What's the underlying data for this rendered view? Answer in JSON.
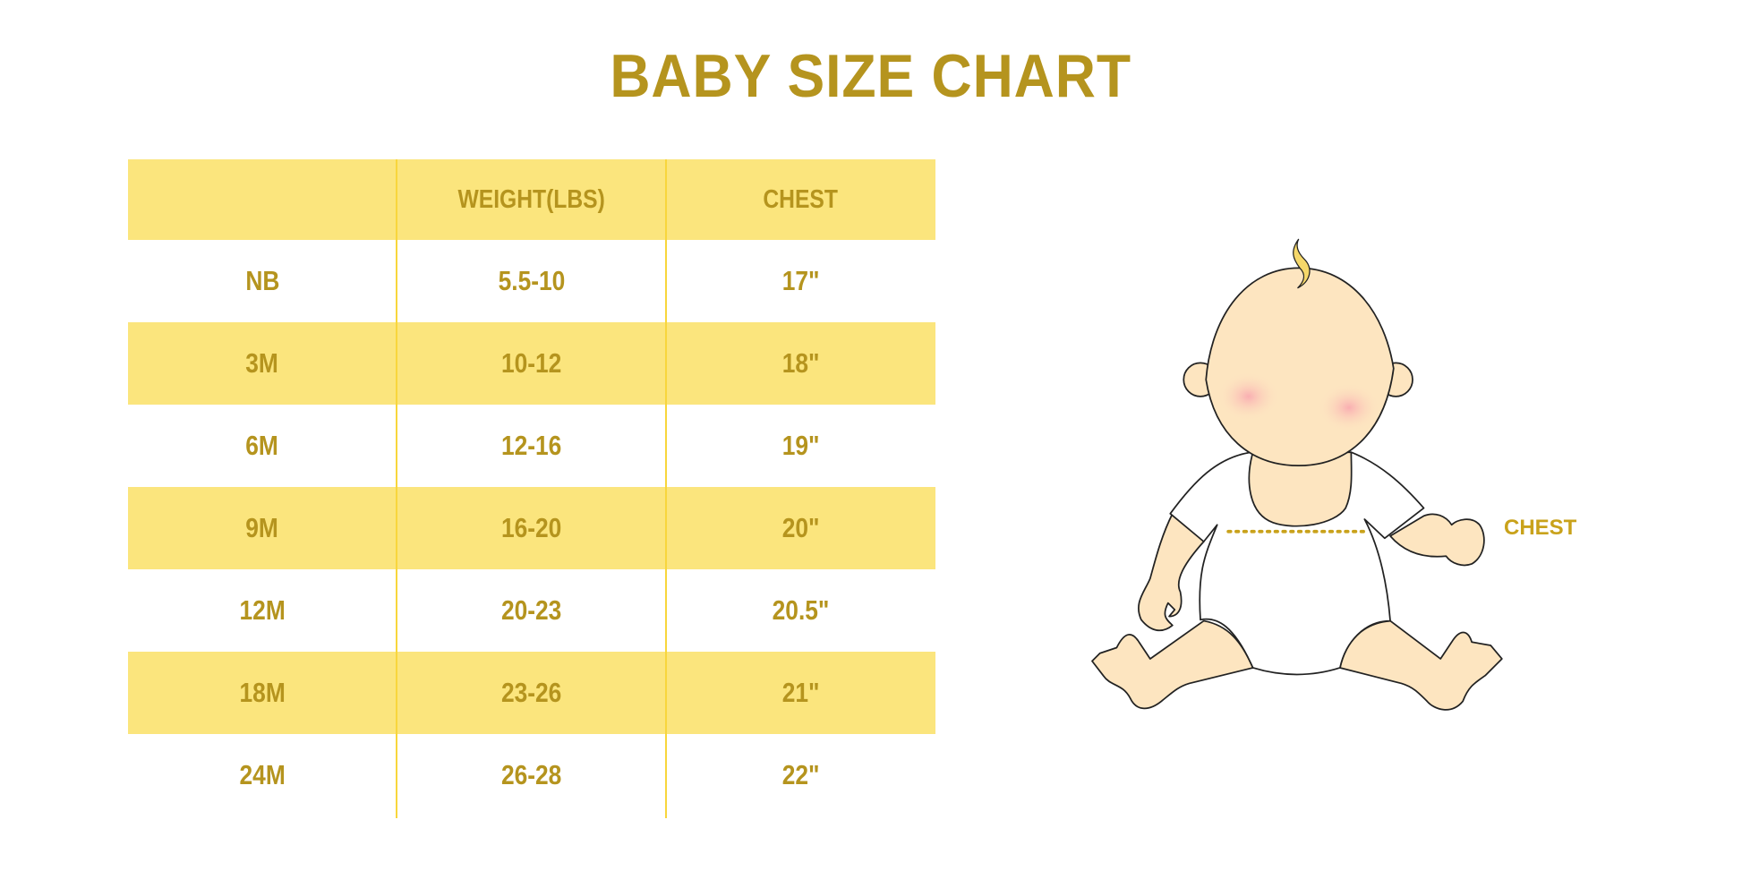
{
  "title": "BABY SIZE CHART",
  "table": {
    "headers": [
      "",
      "WEIGHT(LBS)",
      "CHEST"
    ],
    "rows": [
      [
        "NB",
        "5.5-10",
        "17\""
      ],
      [
        "3M",
        "10-12",
        "18\""
      ],
      [
        "6M",
        "12-16",
        "19\""
      ],
      [
        "9M",
        "16-20",
        "20\""
      ],
      [
        "12M",
        "20-23",
        "20.5\""
      ],
      [
        "18M",
        "23-26",
        "21\""
      ],
      [
        "24M",
        "26-28",
        "22\""
      ]
    ]
  },
  "illustration": {
    "chest_label": "CHEST"
  },
  "colors": {
    "text": "#b5941e",
    "header_fill": "#fbe57d",
    "divider": "#f8d63c",
    "skin": "#fde5c0",
    "chest_line": "#c9a21b"
  }
}
